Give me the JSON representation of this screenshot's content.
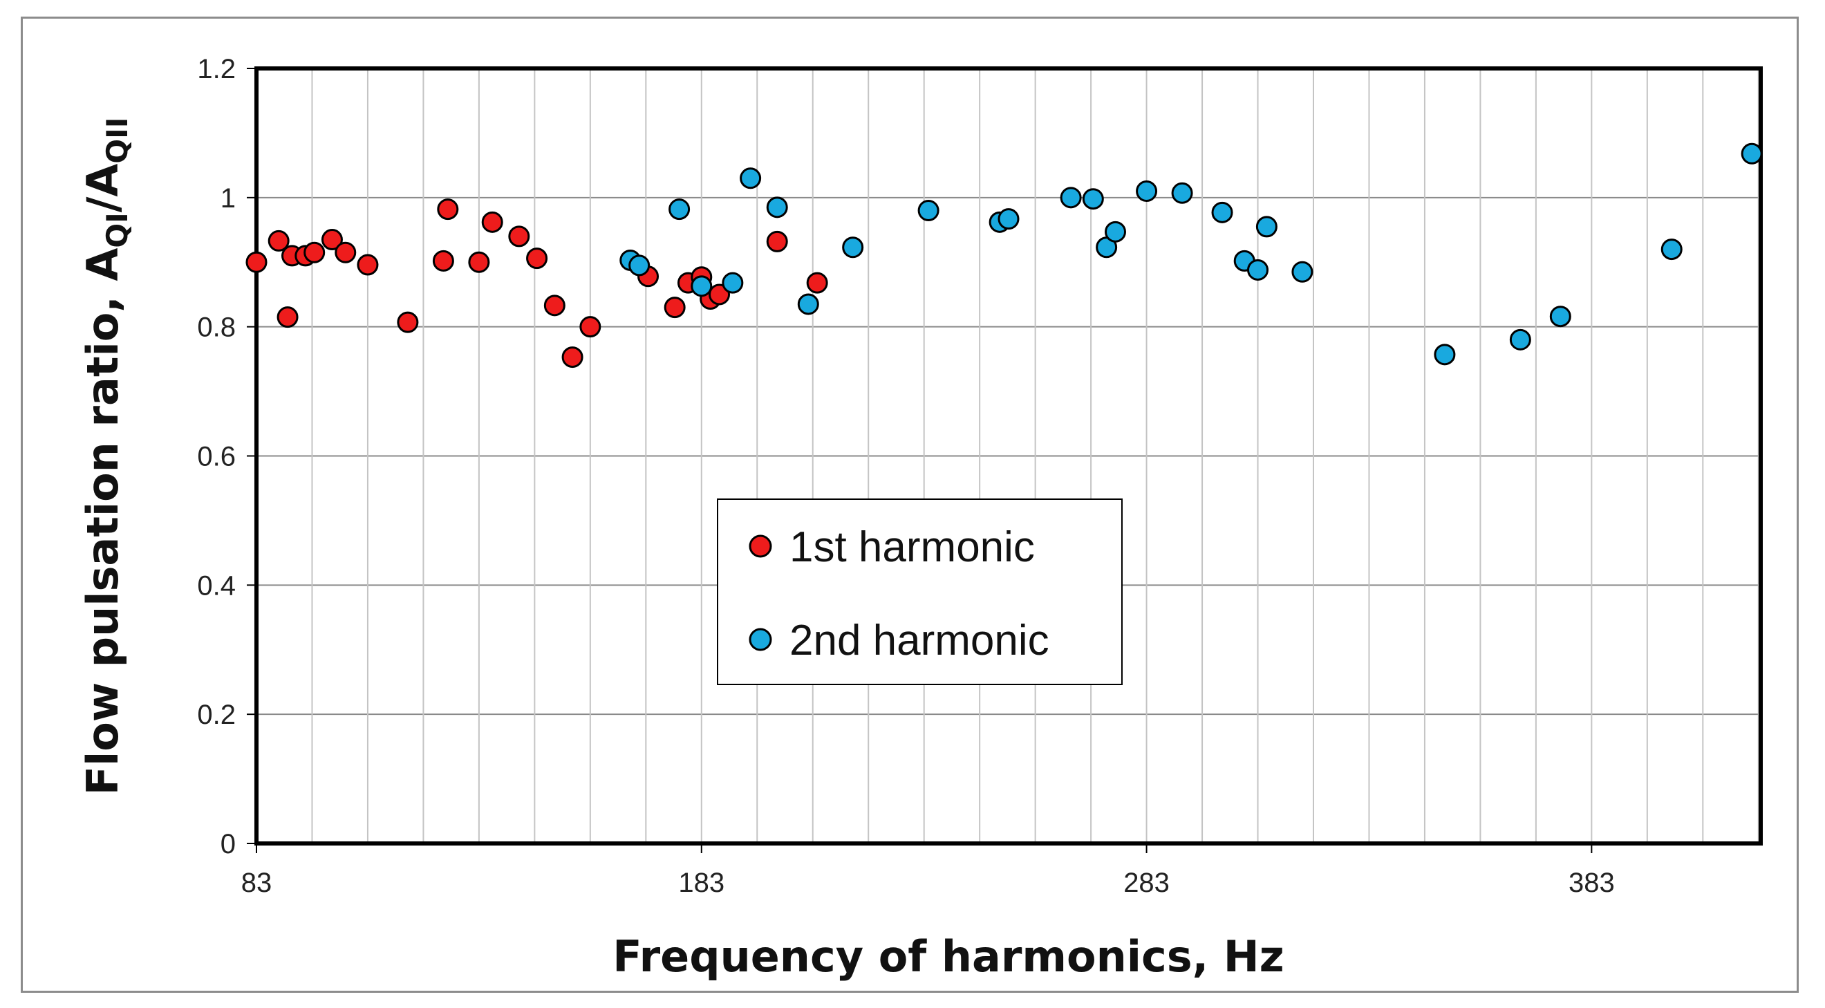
{
  "chart_data": {
    "type": "scatter",
    "xlabel": "Frequency of harmonics, Hz",
    "ylabel_main": "Flow pulsation ratio, A",
    "ylabel_sub1": "QI",
    "ylabel_mid": "/A",
    "ylabel_sub2": "QII",
    "xlim": [
      83,
      421
    ],
    "ylim": [
      0,
      1.2
    ],
    "xticks": [
      83,
      183,
      283,
      383
    ],
    "xtick_labels": [
      "83",
      "183",
      "283",
      "383"
    ],
    "yticks": [
      0,
      0.2,
      0.4,
      0.6,
      0.8,
      1.0,
      1.2
    ],
    "ytick_labels": [
      "0",
      "0.2",
      "0.4",
      "0.6",
      "0.8",
      "1",
      "1.2"
    ],
    "grid": true,
    "legend_position": "center",
    "series": [
      {
        "name": "1st harmonic",
        "color": "#ee1c1c",
        "points": [
          [
            83,
            0.9
          ],
          [
            88,
            0.933
          ],
          [
            90,
            0.815
          ],
          [
            91,
            0.91
          ],
          [
            94,
            0.91
          ],
          [
            96,
            0.915
          ],
          [
            100,
            0.935
          ],
          [
            103,
            0.915
          ],
          [
            108,
            0.896
          ],
          [
            117,
            0.807
          ],
          [
            125,
            0.902
          ],
          [
            126,
            0.982
          ],
          [
            133,
            0.9
          ],
          [
            136,
            0.962
          ],
          [
            142,
            0.94
          ],
          [
            146,
            0.906
          ],
          [
            150,
            0.833
          ],
          [
            154,
            0.753
          ],
          [
            158,
            0.8
          ],
          [
            171,
            0.878
          ],
          [
            177,
            0.83
          ],
          [
            180,
            0.868
          ],
          [
            183,
            0.877
          ],
          [
            185,
            0.843
          ],
          [
            187,
            0.85
          ],
          [
            200,
            0.932
          ],
          [
            209,
            0.868
          ]
        ]
      },
      {
        "name": "2nd harmonic",
        "color": "#19a9df",
        "points": [
          [
            167,
            0.903
          ],
          [
            169,
            0.895
          ],
          [
            178,
            0.982
          ],
          [
            183,
            0.863
          ],
          [
            190,
            0.868
          ],
          [
            194,
            1.03
          ],
          [
            200,
            0.985
          ],
          [
            207,
            0.835
          ],
          [
            217,
            0.923
          ],
          [
            234,
            0.98
          ],
          [
            250,
            0.962
          ],
          [
            252,
            0.967
          ],
          [
            266,
            1.0
          ],
          [
            271,
            0.998
          ],
          [
            274,
            0.923
          ],
          [
            276,
            0.947
          ],
          [
            283,
            1.01
          ],
          [
            291,
            1.007
          ],
          [
            300,
            0.977
          ],
          [
            305,
            0.902
          ],
          [
            308,
            0.888
          ],
          [
            310,
            0.955
          ],
          [
            318,
            0.885
          ],
          [
            350,
            0.757
          ],
          [
            367,
            0.78
          ],
          [
            376,
            0.816
          ],
          [
            401,
            0.92
          ],
          [
            419,
            1.068
          ]
        ]
      }
    ]
  }
}
